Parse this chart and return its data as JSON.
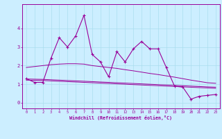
{
  "xlabel": "Windchill (Refroidissement éolien,°C)",
  "bg_color": "#cceeff",
  "line_color": "#990099",
  "grid_color": "#aaddee",
  "x_hours": [
    0,
    1,
    2,
    3,
    4,
    5,
    6,
    7,
    8,
    9,
    10,
    11,
    12,
    13,
    14,
    15,
    16,
    17,
    18,
    19,
    20,
    21,
    22,
    23
  ],
  "y_main": [
    1.3,
    1.1,
    1.1,
    2.4,
    3.5,
    3.0,
    3.6,
    4.7,
    2.6,
    2.2,
    1.4,
    2.75,
    2.2,
    2.9,
    3.3,
    2.9,
    2.9,
    1.9,
    0.9,
    0.85,
    0.2,
    0.35,
    0.4,
    0.45
  ],
  "y_line1": [
    1.9,
    1.95,
    2.0,
    2.05,
    2.08,
    2.1,
    2.1,
    2.08,
    2.0,
    1.95,
    1.9,
    1.85,
    1.78,
    1.72,
    1.65,
    1.58,
    1.52,
    1.45,
    1.38,
    1.3,
    1.22,
    1.15,
    1.08,
    1.05
  ],
  "y_line2": [
    1.28,
    1.27,
    1.26,
    1.24,
    1.22,
    1.2,
    1.18,
    1.16,
    1.14,
    1.12,
    1.1,
    1.08,
    1.06,
    1.04,
    1.02,
    1.0,
    0.98,
    0.96,
    0.94,
    0.92,
    0.9,
    0.88,
    0.86,
    0.84
  ],
  "y_line3": [
    1.22,
    1.21,
    1.2,
    1.18,
    1.16,
    1.14,
    1.12,
    1.1,
    1.08,
    1.06,
    1.04,
    1.02,
    1.0,
    0.98,
    0.96,
    0.94,
    0.92,
    0.9,
    0.88,
    0.86,
    0.84,
    0.82,
    0.8,
    0.78
  ],
  "yticks": [
    0,
    1,
    2,
    3,
    4
  ],
  "ylim": [
    -0.3,
    5.3
  ],
  "xlim": [
    -0.5,
    23.5
  ]
}
